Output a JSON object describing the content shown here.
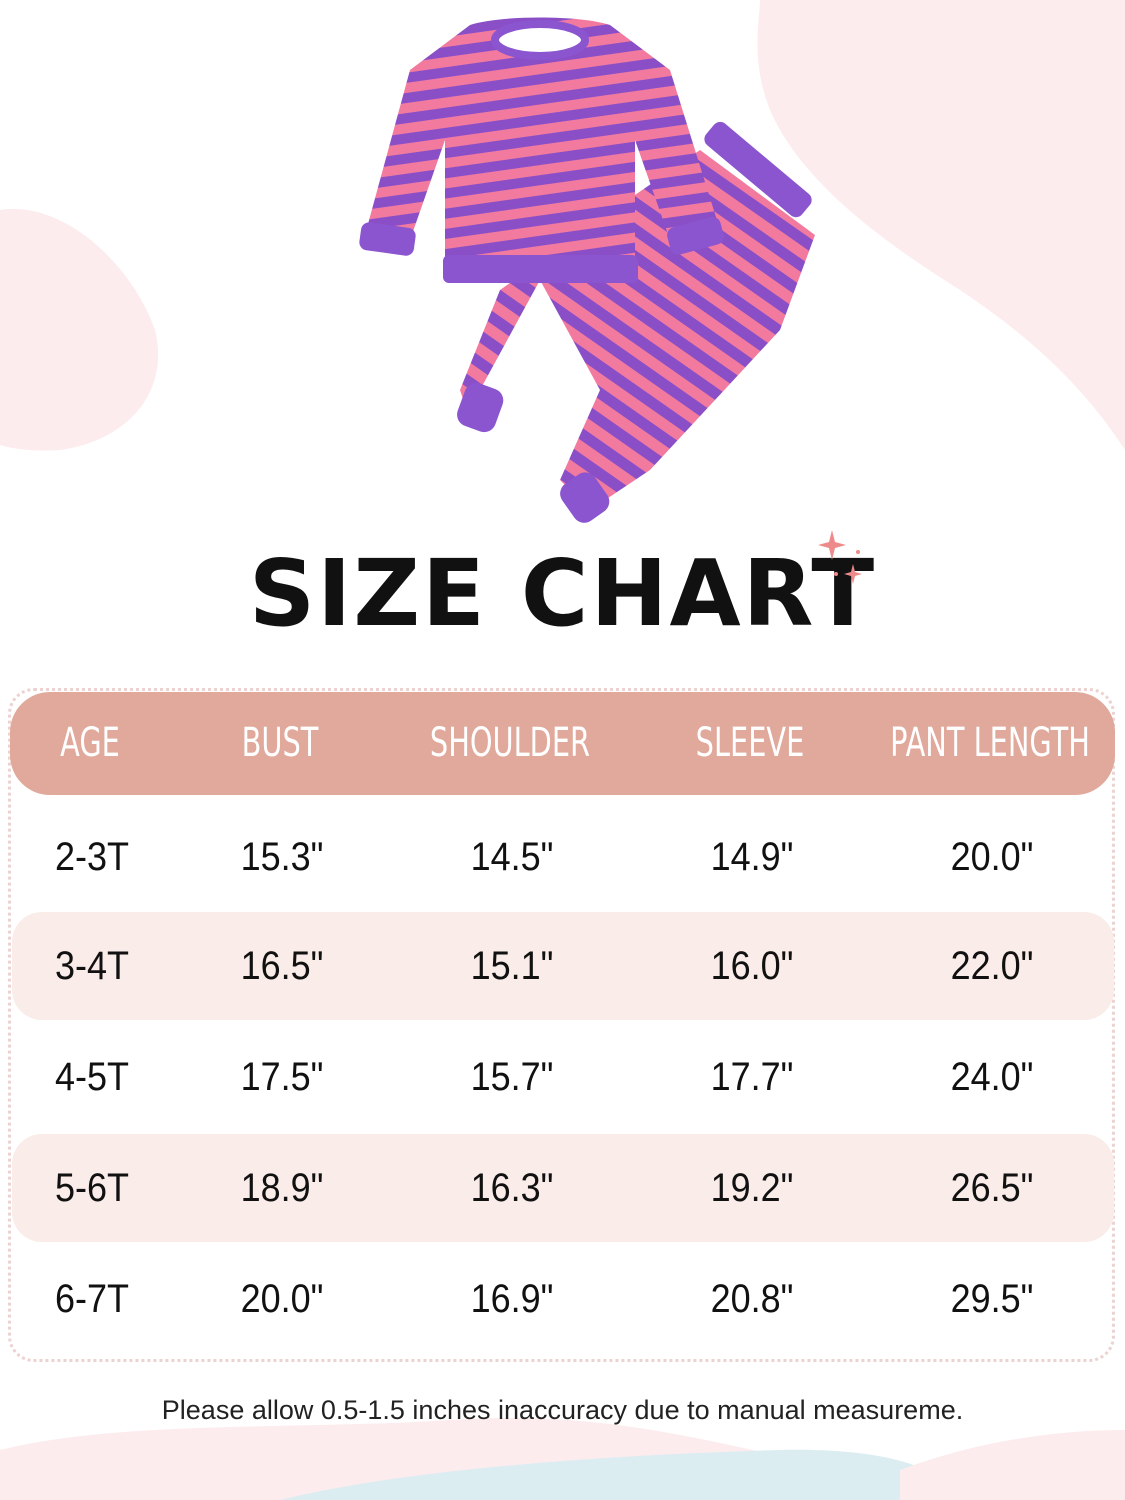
{
  "title": "SIZE CHART",
  "colors": {
    "header": "#e0a99b",
    "shaded_row": "#f9ece9",
    "stripe_pink": "#f27a9f",
    "stripe_purple": "#8a4fc7"
  },
  "table": {
    "headers": [
      "AGE",
      "BUST",
      "SHOULDER",
      "SLEEVE",
      "PANT LENGTH"
    ],
    "rows": [
      [
        "2-3T",
        "15.3\"",
        "14.5\"",
        "14.9\"",
        "20.0\""
      ],
      [
        "3-4T",
        "16.5\"",
        "15.1\"",
        "16.0\"",
        "22.0\""
      ],
      [
        "4-5T",
        "17.5\"",
        "15.7\"",
        "17.7\"",
        "24.0\""
      ],
      [
        "5-6T",
        "18.9\"",
        "16.3\"",
        "19.2\"",
        "26.5\""
      ],
      [
        "6-7T",
        "20.0\"",
        "16.9\"",
        "20.8\"",
        "29.5\""
      ]
    ]
  },
  "note": "Please  allow 0.5-1.5 inches inaccuracy due to manual measureme."
}
